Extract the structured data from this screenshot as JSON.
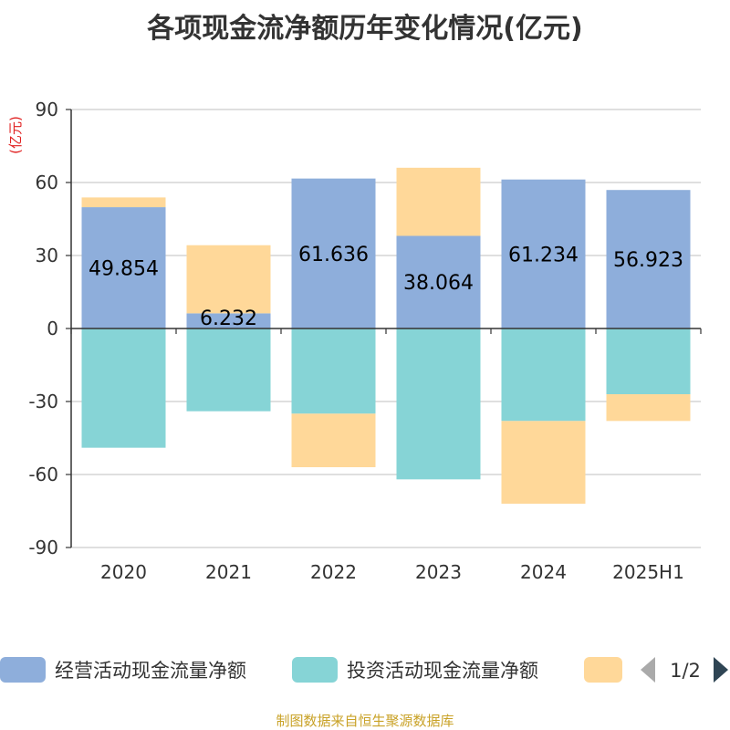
{
  "chart_data": {
    "type": "bar",
    "stacked": true,
    "title": "各项现金流净额历年变化情况(亿元)",
    "ylabel": "(亿元)",
    "ylim": [
      -90,
      90
    ],
    "yticks": [
      90,
      60,
      30,
      0,
      -30,
      -60,
      -90
    ],
    "categories": [
      "2020",
      "2021",
      "2022",
      "2023",
      "2024",
      "2025H1"
    ],
    "series": [
      {
        "name": "经营活动现金流量净额",
        "color": "#8eaedb",
        "values": [
          49.854,
          6.232,
          61.636,
          38.064,
          61.234,
          56.923
        ]
      },
      {
        "name": "投资活动现金流量净额",
        "color": "#86d4d6",
        "values": [
          -49,
          -34,
          -35,
          -62,
          -38,
          -27
        ]
      },
      {
        "name": "",
        "color": "#ffd899",
        "values": [
          4,
          28,
          -22,
          28,
          -34,
          -11
        ]
      }
    ],
    "data_labels": [
      "49.854",
      "6.232",
      "61.636",
      "38.064",
      "61.234",
      "56.923"
    ],
    "legend": {
      "position": "bottom",
      "page": "1/2"
    },
    "grid": true
  },
  "footer": "制图数据来自恒生聚源数据库"
}
